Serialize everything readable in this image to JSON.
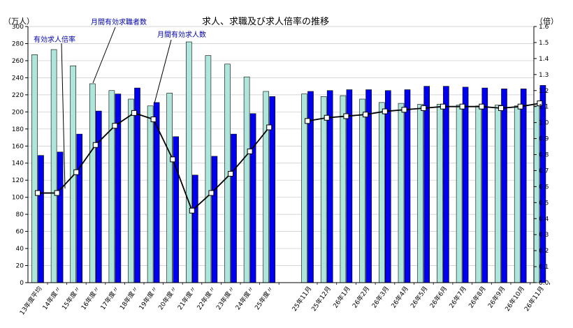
{
  "chart_data": {
    "type": "bar",
    "title": "求人、求職及び求人倍率の推移",
    "y_left_unit": "（万人）",
    "y_right_unit": "（倍）",
    "ylim_left": [
      0,
      300
    ],
    "ylim_right": [
      0,
      1.6
    ],
    "y_left_ticks": [
      "0",
      "20",
      "40",
      "60",
      "80",
      "100",
      "120",
      "140",
      "160",
      "180",
      "200",
      "220",
      "240",
      "260",
      "280",
      "300"
    ],
    "y_right_ticks": [
      "0.0",
      "0.1",
      "0.2",
      "0.3",
      "0.4",
      "0.5",
      "0.6",
      "0.7",
      "0.8",
      "0.9",
      "1.0",
      "1.1",
      "1.2",
      "1.3",
      "1.4",
      "1.5",
      "1.6"
    ],
    "categories": [
      "13年度平均",
      "14年度〃",
      "15年度〃",
      "16年度〃",
      "17年度〃",
      "18年度〃",
      "19年度〃",
      "20年度〃",
      "21年度〃",
      "22年度〃",
      "23年度〃",
      "24年度〃",
      "25年度〃",
      "25年11月",
      "25年12月",
      "26年1月",
      "26年2月",
      "26年3月",
      "26年4月",
      "26年5月",
      "26年6月",
      "26年7月",
      "26年8月",
      "26年9月",
      "26年10月",
      "26年11月"
    ],
    "gap_after_index": 12,
    "grid": true,
    "series": [
      {
        "name": "月間有効求職者数",
        "type": "bar",
        "axis": "left",
        "color": "#aee6dc",
        "values": [
          267,
          273,
          254,
          233,
          225,
          215,
          207,
          222,
          282,
          266,
          256,
          241,
          224,
          221,
          218,
          219,
          215,
          211,
          210,
          209,
          209,
          208,
          207,
          208,
          207,
          207
        ]
      },
      {
        "name": "月間有効求人数",
        "type": "bar",
        "axis": "left",
        "color": "#0000ee",
        "values": [
          149,
          153,
          174,
          201,
          221,
          228,
          211,
          171,
          126,
          148,
          174,
          198,
          218,
          224,
          225,
          226,
          226,
          225,
          226,
          230,
          230,
          229,
          228,
          227,
          227,
          231
        ]
      },
      {
        "name": "有効求人倍率",
        "type": "line",
        "axis": "right",
        "color": "#000000",
        "values": [
          0.56,
          0.56,
          0.69,
          0.86,
          0.98,
          1.06,
          1.02,
          0.77,
          0.45,
          0.56,
          0.68,
          0.82,
          0.97,
          1.01,
          1.03,
          1.04,
          1.05,
          1.07,
          1.08,
          1.09,
          1.1,
          1.1,
          1.1,
          1.09,
          1.1,
          1.12
        ]
      }
    ],
    "annotations": {
      "applicants_label": "月間有効求職者数",
      "offers_label": "月間有効求人数",
      "ratio_label": "有効求人倍率"
    }
  }
}
